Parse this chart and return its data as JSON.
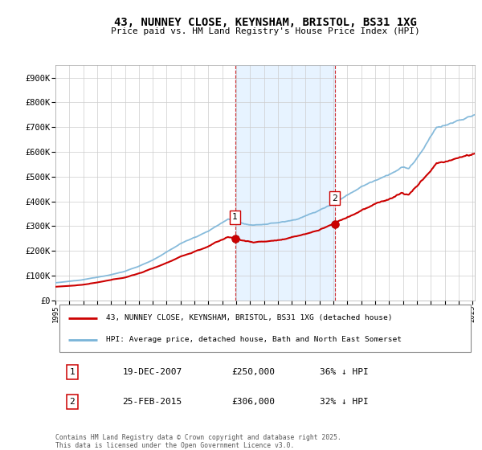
{
  "title": "43, NUNNEY CLOSE, KEYNSHAM, BRISTOL, BS31 1XG",
  "subtitle": "Price paid vs. HM Land Registry's House Price Index (HPI)",
  "yticks": [
    0,
    100000,
    200000,
    300000,
    400000,
    500000,
    600000,
    700000,
    800000,
    900000
  ],
  "ytick_labels": [
    "£0",
    "£100K",
    "£200K",
    "£300K",
    "£400K",
    "£500K",
    "£600K",
    "£700K",
    "£800K",
    "£900K"
  ],
  "ylim": [
    0,
    950000
  ],
  "hpi_color": "#7ab4d8",
  "price_color": "#cc0000",
  "sale1_price": 250000,
  "sale1_date_str": "19-DEC-2007",
  "sale1_hpi_pct": "36% ↓ HPI",
  "sale2_price": 306000,
  "sale2_date_str": "25-FEB-2015",
  "sale2_hpi_pct": "32% ↓ HPI",
  "legend_line1": "43, NUNNEY CLOSE, KEYNSHAM, BRISTOL, BS31 1XG (detached house)",
  "legend_line2": "HPI: Average price, detached house, Bath and North East Somerset",
  "footer": "Contains HM Land Registry data © Crown copyright and database right 2025.\nThis data is licensed under the Open Government Licence v3.0.",
  "shade_color": "#ddeeff",
  "grid_color": "#cccccc",
  "bg_color": "#f0f0f0"
}
